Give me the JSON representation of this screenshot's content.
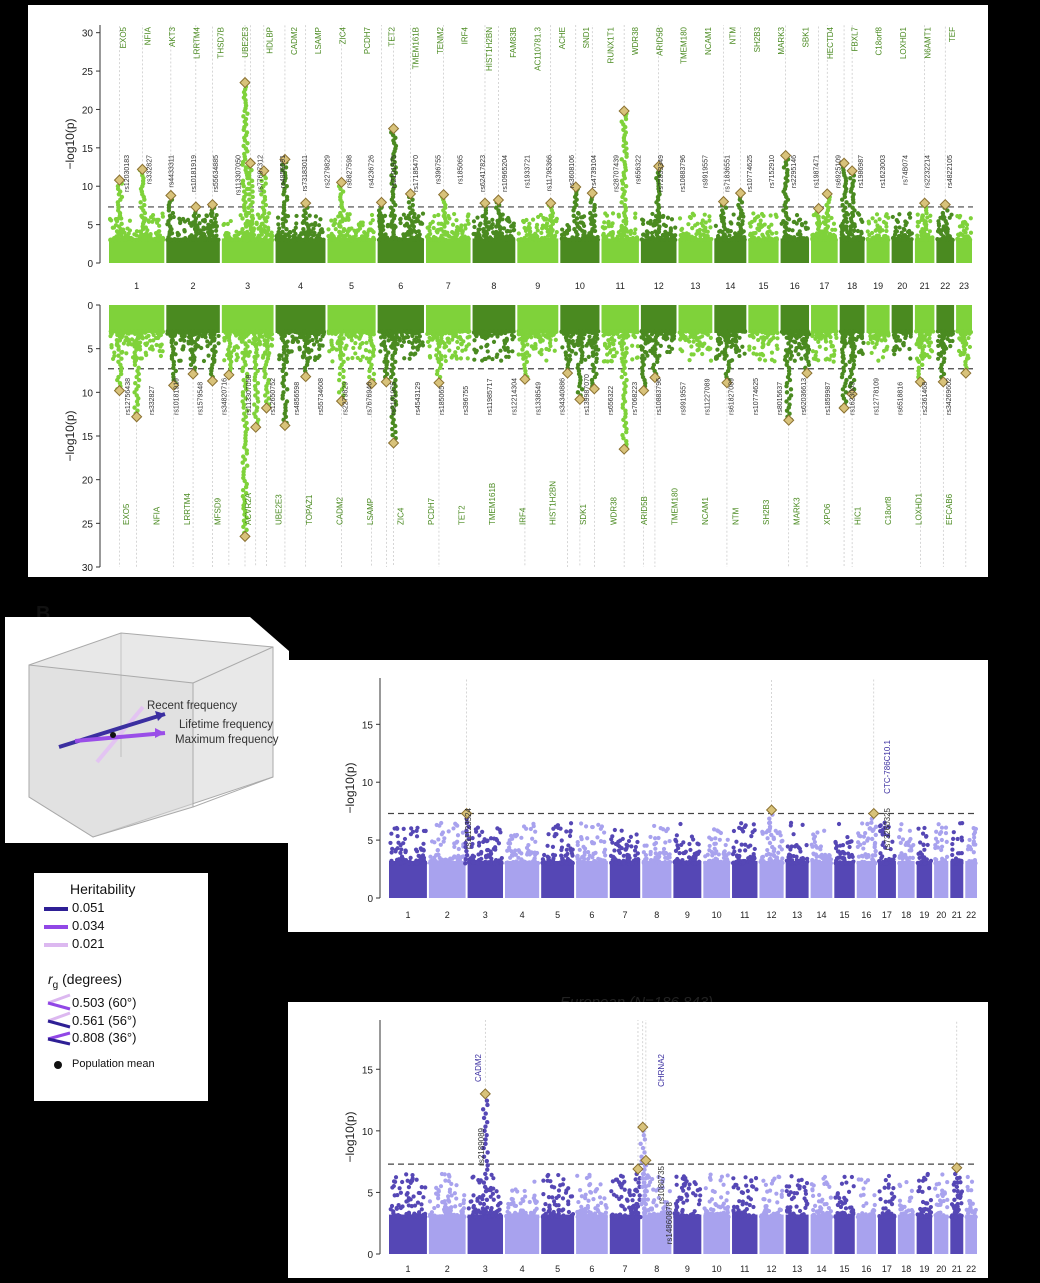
{
  "panel_letter": "B",
  "chart_data": [
    {
      "type": "scatter",
      "subtype": "manhattan",
      "panel": "A-top",
      "ylabel": "−log10(p)",
      "ylim": [
        0,
        31
      ],
      "yticks": [
        0,
        5,
        10,
        15,
        20,
        25,
        30
      ],
      "threshold": 7.3,
      "chromosomes": [
        "1",
        "2",
        "3",
        "4",
        "5",
        "6",
        "7",
        "8",
        "9",
        "10",
        "11",
        "12",
        "13",
        "14",
        "15",
        "16",
        "17",
        "18",
        "19",
        "20",
        "21",
        "22",
        "23"
      ],
      "colors": [
        "#7fd23a",
        "#4a8a20"
      ],
      "genes": [
        "EXO5",
        "NFIA",
        "AKT3",
        "LRRTM4",
        "THSD7B",
        "UBE2E3",
        "HDLBP",
        "CADM2",
        "LSAMP",
        "ZIC4",
        "PCDH7",
        "TET2",
        "TMEM161B",
        "TENM2",
        "IRF4",
        "HIST1H2BN",
        "FAM83B",
        "AC110781.3",
        "ACHE",
        "SND1",
        "RUNX1T1",
        "WDR38",
        "ARID5B",
        "TMEM180",
        "NCAM1",
        "NTM",
        "SH2B3",
        "MARK3",
        "SBK1",
        "HECTD4",
        "FBXL7",
        "C18orf8",
        "LOXHD1",
        "N6AMT1",
        "TEF"
      ],
      "snps": [
        "rs12030183",
        "rs332827",
        "rs4433311",
        "rs10181919",
        "rs55634885",
        "rs113307050",
        "rs77697312",
        "rs4856591",
        "rs73183011",
        "rs2279829",
        "rs6827598",
        "rs4236726",
        "rs2101975",
        "rs17185470",
        "rs396755",
        "rs185065",
        "rs62417823",
        "rs10965204",
        "rs1933721",
        "rs11795366",
        "rs3608106",
        "rs4739104",
        "rs28707439",
        "rs656322",
        "rs72833349",
        "rs10883796",
        "rs9919557",
        "rs71836551",
        "rs10774625",
        "rs7152910",
        "rs2295146",
        "rs1987471",
        "rs6925109",
        "rs1986987",
        "rs1623003",
        "rs74B074",
        "rs2232214",
        "rs4822105"
      ],
      "peaks": [
        {
          "chr": "1",
          "pos": 0.2,
          "p": 10.8
        },
        {
          "chr": "1",
          "pos": 0.6,
          "p": 12.2
        },
        {
          "chr": "2",
          "pos": 0.1,
          "p": 8.8
        },
        {
          "chr": "2",
          "pos": 0.55,
          "p": 7.3
        },
        {
          "chr": "2",
          "pos": 0.85,
          "p": 7.6
        },
        {
          "chr": "3",
          "pos": 0.45,
          "p": 23.5
        },
        {
          "chr": "3",
          "pos": 0.55,
          "p": 13.0
        },
        {
          "chr": "3",
          "pos": 0.8,
          "p": 12.0
        },
        {
          "chr": "4",
          "pos": 0.2,
          "p": 13.5
        },
        {
          "chr": "4",
          "pos": 0.6,
          "p": 7.8
        },
        {
          "chr": "5",
          "pos": 0.3,
          "p": 10.5
        },
        {
          "chr": "6",
          "pos": 0.1,
          "p": 7.9
        },
        {
          "chr": "6",
          "pos": 0.35,
          "p": 17.5
        },
        {
          "chr": "6",
          "pos": 0.7,
          "p": 9.0
        },
        {
          "chr": "7",
          "pos": 0.4,
          "p": 8.9
        },
        {
          "chr": "8",
          "pos": 0.3,
          "p": 7.8
        },
        {
          "chr": "8",
          "pos": 0.6,
          "p": 8.2
        },
        {
          "chr": "9",
          "pos": 0.8,
          "p": 7.8
        },
        {
          "chr": "10",
          "pos": 0.4,
          "p": 9.9
        },
        {
          "chr": "10",
          "pos": 0.8,
          "p": 9.1
        },
        {
          "chr": "11",
          "pos": 0.6,
          "p": 19.8
        },
        {
          "chr": "12",
          "pos": 0.5,
          "p": 12.6
        },
        {
          "chr": "14",
          "pos": 0.3,
          "p": 8.0
        },
        {
          "chr": "14",
          "pos": 0.8,
          "p": 9.1
        },
        {
          "chr": "16",
          "pos": 0.2,
          "p": 14.0
        },
        {
          "chr": "17",
          "pos": 0.3,
          "p": 7.1
        },
        {
          "chr": "17",
          "pos": 0.6,
          "p": 9.0
        },
        {
          "chr": "18",
          "pos": 0.2,
          "p": 13.0
        },
        {
          "chr": "18",
          "pos": 0.5,
          "p": 12.0
        },
        {
          "chr": "21",
          "pos": 0.5,
          "p": 7.8
        },
        {
          "chr": "22",
          "pos": 0.5,
          "p": 7.6
        }
      ]
    },
    {
      "type": "scatter",
      "subtype": "manhattan",
      "panel": "A-bottom",
      "ylabel": "−log10(p)",
      "ylim": [
        0,
        30
      ],
      "yticks": [
        0,
        5,
        10,
        15,
        20,
        25,
        30
      ],
      "inverted": true,
      "threshold": 7.3,
      "colors": [
        "#7fd23a",
        "#4a8a20"
      ],
      "genes": [
        "EXO5",
        "NFIA",
        "LRRTM4",
        "MFSD9",
        "ACVR2A",
        "UBE2E3",
        "TOPAZ1",
        "CADM2",
        "LSAMP",
        "ZIC4",
        "PCDH7",
        "TET2",
        "TMEM161B",
        "IRF4",
        "HIST1H2BN",
        "SDK1",
        "WDR38",
        "ARID5B",
        "TMEM180",
        "NCAM1",
        "NTM",
        "SH2B3",
        "MARK3",
        "XPO6",
        "HIC1",
        "C18orf8",
        "LOXHD1",
        "EFCAB6"
      ],
      "snps": [
        "rs12756438",
        "rs332827",
        "rs10181919",
        "rs1579548",
        "rs34820716",
        "rs113307058",
        "rs12650752",
        "rs4856598",
        "rs55734608",
        "rs2279829",
        "rs7676946",
        "rs2101975",
        "rs4543129",
        "rs185065",
        "rs396755",
        "rs11985717",
        "rs12214304",
        "rs1338549",
        "rs34340886",
        "rs139987070",
        "rs656322",
        "rs7068223",
        "rs10883796",
        "rs9919557",
        "rs11227089",
        "rs61827089",
        "rs10774625",
        "rs8015637",
        "rs62036613",
        "rs1859987",
        "rs1623003",
        "rs12778109",
        "rs6518816",
        "rs2361468",
        "rs34269602"
      ],
      "peaks": [
        {
          "chr": "1",
          "pos": 0.2,
          "p": 9.8
        },
        {
          "chr": "1",
          "pos": 0.5,
          "p": 12.8
        },
        {
          "chr": "2",
          "pos": 0.15,
          "p": 9.2
        },
        {
          "chr": "2",
          "pos": 0.5,
          "p": 7.9
        },
        {
          "chr": "2",
          "pos": 0.85,
          "p": 8.7
        },
        {
          "chr": "3",
          "pos": 0.15,
          "p": 8.0
        },
        {
          "chr": "3",
          "pos": 0.45,
          "p": 26.5
        },
        {
          "chr": "3",
          "pos": 0.65,
          "p": 14.0
        },
        {
          "chr": "3",
          "pos": 0.85,
          "p": 11.8
        },
        {
          "chr": "4",
          "pos": 0.2,
          "p": 13.8
        },
        {
          "chr": "4",
          "pos": 0.6,
          "p": 8.2
        },
        {
          "chr": "5",
          "pos": 0.3,
          "p": 11.0
        },
        {
          "chr": "5",
          "pos": 0.9,
          "p": 9.0
        },
        {
          "chr": "6",
          "pos": 0.2,
          "p": 8.8
        },
        {
          "chr": "6",
          "pos": 0.35,
          "p": 15.8
        },
        {
          "chr": "7",
          "pos": 0.3,
          "p": 8.9
        },
        {
          "chr": "9",
          "pos": 0.2,
          "p": 8.5
        },
        {
          "chr": "10",
          "pos": 0.2,
          "p": 7.8
        },
        {
          "chr": "10",
          "pos": 0.5,
          "p": 10.8
        },
        {
          "chr": "10",
          "pos": 0.85,
          "p": 9.6
        },
        {
          "chr": "11",
          "pos": 0.6,
          "p": 16.5
        },
        {
          "chr": "12",
          "pos": 0.1,
          "p": 9.8
        },
        {
          "chr": "12",
          "pos": 0.4,
          "p": 8.3
        },
        {
          "chr": "14",
          "pos": 0.4,
          "p": 8.9
        },
        {
          "chr": "16",
          "pos": 0.3,
          "p": 13.2
        },
        {
          "chr": "16",
          "pos": 0.9,
          "p": 7.8
        },
        {
          "chr": "18",
          "pos": 0.2,
          "p": 11.8
        },
        {
          "chr": "18",
          "pos": 0.5,
          "p": 10.2
        },
        {
          "chr": "21",
          "pos": 0.3,
          "p": 8.8
        },
        {
          "chr": "22",
          "pos": 0.4,
          "p": 8.8
        },
        {
          "chr": "23",
          "pos": 0.6,
          "p": 7.8
        }
      ]
    },
    {
      "type": "scatter",
      "subtype": "manhattan",
      "panel": "B-top",
      "ylabel": "−log10(p)",
      "ylim": [
        0,
        19
      ],
      "yticks": [
        0,
        5,
        10,
        15
      ],
      "threshold": 7.3,
      "chromosomes": [
        "1",
        "2",
        "3",
        "4",
        "5",
        "6",
        "7",
        "8",
        "9",
        "10",
        "11",
        "12",
        "13",
        "14",
        "15",
        "16",
        "17",
        "18",
        "19",
        "20",
        "21",
        "22"
      ],
      "colors": [
        "#5547b5",
        "#a8a2ee"
      ],
      "genes": [
        "CTC-786C10.1"
      ],
      "snps": [
        "rs11123524",
        "rs73260325"
      ],
      "peaks": [
        {
          "chr": "3",
          "pos": 0.0,
          "p": 7.3
        },
        {
          "chr": "12",
          "pos": 0.5,
          "p": 7.6
        },
        {
          "chr": "16",
          "pos": 0.85,
          "p": 7.3
        }
      ]
    },
    {
      "type": "scatter",
      "subtype": "manhattan",
      "panel": "B-bottom",
      "title": "European (N=186,843)",
      "ylabel": "−log10(p)",
      "ylim": [
        0,
        19
      ],
      "yticks": [
        0,
        5,
        10,
        15
      ],
      "threshold": 7.3,
      "chromosomes": [
        "1",
        "2",
        "3",
        "4",
        "5",
        "6",
        "7",
        "8",
        "9",
        "10",
        "11",
        "12",
        "13",
        "14",
        "15",
        "16",
        "17",
        "18",
        "19",
        "20",
        "21",
        "22"
      ],
      "colors": [
        "#5547b5",
        "#a8a2ee"
      ],
      "genes": [
        "CADM2",
        "CHRNA2"
      ],
      "snps": [
        "rs2189089",
        "rs1080735",
        "rs14860878"
      ],
      "peaks": [
        {
          "chr": "3",
          "pos": 0.5,
          "p": 13.0
        },
        {
          "chr": "7",
          "pos": 0.9,
          "p": 6.9
        },
        {
          "chr": "8",
          "pos": 0.05,
          "p": 10.3
        },
        {
          "chr": "8",
          "pos": 0.15,
          "p": 7.6
        },
        {
          "chr": "21",
          "pos": 0.5,
          "p": 7.0
        }
      ]
    }
  ],
  "inset": {
    "vectors": [
      {
        "label": "Recent frequency",
        "color": "#e3c4f2"
      },
      {
        "label": "Lifetime frequency",
        "color": "#3b2fa0"
      },
      {
        "label": "Maximum frequency",
        "color": "#9a4ee8"
      }
    ]
  },
  "legend": {
    "title": "Heritability",
    "items": [
      {
        "value": "0.051",
        "color": "#2e1f95"
      },
      {
        "value": "0.034",
        "color": "#9147e6"
      },
      {
        "value": "0.021",
        "color": "#dcb8f0"
      }
    ],
    "rg_title": "r",
    "rg_sub": "g",
    "rg_unit": " (degrees)",
    "rg_items": [
      {
        "value": "0.503 (60°)",
        "c1": "#dcb8f0",
        "c2": "#9147e6"
      },
      {
        "value": "0.561 (56°)",
        "c1": "#dcb8f0",
        "c2": "#2e1f95"
      },
      {
        "value": "0.808 (36°)",
        "c1": "#9147e6",
        "c2": "#2e1f95"
      }
    ],
    "pop_mean": "Population mean"
  }
}
